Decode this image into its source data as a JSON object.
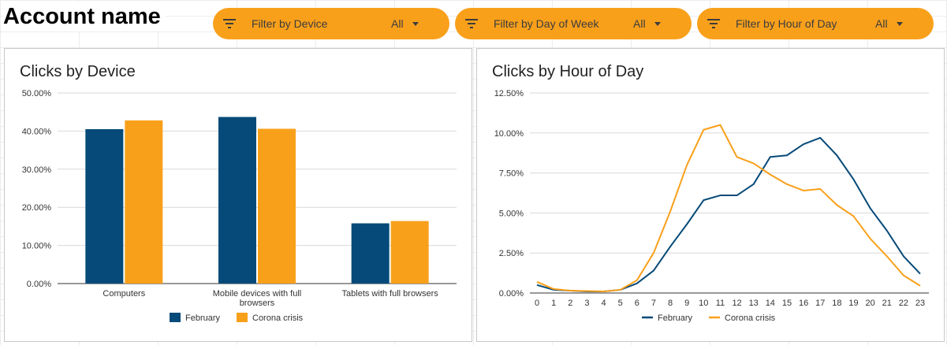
{
  "account_name": "Account name",
  "filters": [
    {
      "label": "Filter by Device",
      "value": "All",
      "icon": "filter-icon"
    },
    {
      "label": "Filter by Day of Week",
      "value": "All",
      "icon": "filter-icon"
    },
    {
      "label": "Filter by Hour of Day",
      "value": "All",
      "icon": "filter-icon"
    }
  ],
  "colors": {
    "february": "#054a78",
    "corona": "#f9a01b",
    "filter_bg": "#f9a01b"
  },
  "chart_data": [
    {
      "type": "bar",
      "title": "Clicks by Device",
      "categories": [
        "Computers",
        "Mobile devices with full browsers",
        "Tablets with full browsers"
      ],
      "category_lines": [
        [
          "Computers"
        ],
        [
          "Mobile devices with full",
          "browsers"
        ],
        [
          "Tablets with full browsers"
        ]
      ],
      "series": [
        {
          "name": "February",
          "values": [
            40.5,
            43.7,
            15.8
          ]
        },
        {
          "name": "Corona crisis",
          "values": [
            42.8,
            40.6,
            16.4
          ]
        }
      ],
      "ylim": [
        0,
        50
      ],
      "yticks": [
        "0.00%",
        "10.00%",
        "20.00%",
        "30.00%",
        "40.00%",
        "50.00%"
      ],
      "legend": "bottom"
    },
    {
      "type": "line",
      "title": "Clicks by Hour of Day",
      "x": [
        0,
        1,
        2,
        3,
        4,
        5,
        6,
        7,
        8,
        9,
        10,
        11,
        12,
        13,
        14,
        15,
        16,
        17,
        18,
        19,
        20,
        21,
        22,
        23
      ],
      "xticks": [
        "0",
        "1",
        "2",
        "3",
        "4",
        "5",
        "6",
        "7",
        "8",
        "9",
        "10",
        "11",
        "12",
        "13",
        "14",
        "15",
        "16",
        "17",
        "18",
        "19",
        "20",
        "21",
        "22",
        "23"
      ],
      "series": [
        {
          "name": "February",
          "values": [
            0.5,
            0.2,
            0.15,
            0.1,
            0.1,
            0.2,
            0.6,
            1.4,
            2.9,
            4.3,
            5.8,
            6.1,
            6.1,
            6.8,
            8.5,
            8.6,
            9.3,
            9.7,
            8.6,
            7.1,
            5.3,
            3.9,
            2.3,
            1.2
          ]
        },
        {
          "name": "Corona crisis",
          "values": [
            0.7,
            0.25,
            0.15,
            0.12,
            0.1,
            0.2,
            0.8,
            2.5,
            5.1,
            8.0,
            10.2,
            10.5,
            8.5,
            8.1,
            7.4,
            6.8,
            6.4,
            6.5,
            5.5,
            4.8,
            3.4,
            2.3,
            1.1,
            0.45
          ]
        }
      ],
      "ylim": [
        0,
        12.5
      ],
      "yticks": [
        "0.00%",
        "2.50%",
        "5.00%",
        "7.50%",
        "10.00%",
        "12.50%"
      ],
      "legend": "bottom"
    }
  ]
}
